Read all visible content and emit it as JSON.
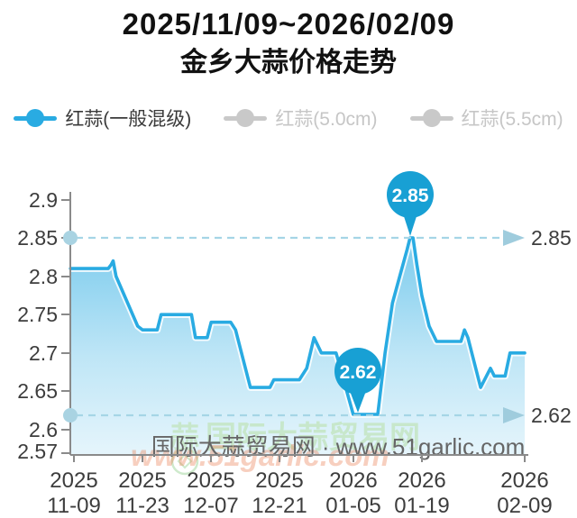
{
  "title": {
    "range": "2025/11/09~2026/02/09",
    "name": "金乡大蒜价格走势"
  },
  "legend": [
    {
      "label": "红蒜(一般混级)",
      "active": true
    },
    {
      "label": "红蒜(5.0cm)",
      "active": false
    },
    {
      "label": "红蒜(5.5cm)",
      "active": false
    }
  ],
  "chart_data": {
    "type": "area",
    "title": "金乡大蒜价格走势",
    "subtitle": "2025/11/09~2026/02/09",
    "ylim": [
      2.57,
      2.92
    ],
    "grid": false,
    "legend_position": "top",
    "y_tick_labels": [
      "2.9",
      "2.85",
      "2.8",
      "2.75",
      "2.7",
      "2.65",
      "2.6",
      "2.57"
    ],
    "x_ticks": [
      {
        "year": "2025",
        "md": "11-09"
      },
      {
        "year": "2025",
        "md": "11-23"
      },
      {
        "year": "2025",
        "md": "12-07"
      },
      {
        "year": "2025",
        "md": "12-21"
      },
      {
        "year": "2026",
        "md": "01-05"
      },
      {
        "year": "2026",
        "md": "01-19"
      },
      {
        "year": "2026",
        "md": "02-09"
      }
    ],
    "series": [
      {
        "name": "红蒜(一般混级)",
        "start_date": "2025-11-09",
        "points": [
          [
            -0.7,
            2.81
          ],
          [
            7,
            2.81
          ],
          [
            7.6,
            2.815
          ],
          [
            8,
            2.82
          ],
          [
            8.6,
            2.8
          ],
          [
            13,
            2.735
          ],
          [
            14,
            2.73
          ],
          [
            17,
            2.73
          ],
          [
            17.8,
            2.75
          ],
          [
            24,
            2.75
          ],
          [
            24.8,
            2.72
          ],
          [
            27.2,
            2.72
          ],
          [
            28,
            2.74
          ],
          [
            32,
            2.74
          ],
          [
            33,
            2.73
          ],
          [
            36,
            2.655
          ],
          [
            40,
            2.655
          ],
          [
            40.8,
            2.665
          ],
          [
            46,
            2.665
          ],
          [
            47.5,
            2.68
          ],
          [
            49,
            2.72
          ],
          [
            50.5,
            2.7
          ],
          [
            53.5,
            2.7
          ],
          [
            57,
            2.62
          ],
          [
            62,
            2.62
          ],
          [
            63.5,
            2.7
          ],
          [
            65,
            2.765
          ],
          [
            66.5,
            2.8
          ],
          [
            68,
            2.835
          ],
          [
            68.6,
            2.85
          ],
          [
            69.2,
            2.85
          ],
          [
            70,
            2.815
          ],
          [
            71,
            2.775
          ],
          [
            72.5,
            2.735
          ],
          [
            74,
            2.715
          ],
          [
            79,
            2.715
          ],
          [
            79.7,
            2.73
          ],
          [
            80.4,
            2.72
          ],
          [
            83,
            2.655
          ],
          [
            85,
            2.68
          ],
          [
            85.8,
            2.67
          ],
          [
            88,
            2.67
          ],
          [
            89,
            2.7
          ],
          [
            92,
            2.7
          ]
        ],
        "readings": [
          [
            "2025-11-09",
            2.81
          ],
          [
            "2025-11-16",
            2.82
          ],
          [
            "2025-11-23",
            2.73
          ],
          [
            "2025-11-27",
            2.75
          ],
          [
            "2025-12-04",
            2.72
          ],
          [
            "2025-12-07",
            2.74
          ],
          [
            "2025-12-14",
            2.66
          ],
          [
            "2025-12-19",
            2.67
          ],
          [
            "2025-12-26",
            2.72
          ],
          [
            "2025-12-27",
            2.7
          ],
          [
            "2026-01-05",
            2.62
          ],
          [
            "2026-01-10",
            2.62
          ],
          [
            "2026-01-17",
            2.85
          ],
          [
            "2026-01-22",
            2.72
          ],
          [
            "2026-01-31",
            2.66
          ],
          [
            "2026-02-02",
            2.68
          ],
          [
            "2026-02-05",
            2.67
          ],
          [
            "2026-02-09",
            2.7
          ]
        ]
      }
    ],
    "annotations": {
      "max_label": "2.85",
      "max_value": 2.85,
      "max_date": "2026-01-17",
      "min_label": "2.62",
      "min_value": 2.62,
      "min_date": "2026-01-05"
    },
    "reference_lines": [
      2.85,
      2.62
    ],
    "colors": {
      "series": "#29abe2",
      "balloon": "#18a0d4",
      "inactive": "#c9c9c9",
      "dashed_ref": "#a5d5e6",
      "ref_dot": "#a9d3e2",
      "axis": "#8a8a8a"
    }
  },
  "watermark": {
    "logo_char": "蒜",
    "brand_cn": "国际大蒜贸易网",
    "site": "www.51garlic.com",
    "attribution": "国际大蒜贸易网 · www.51garlic.com"
  }
}
